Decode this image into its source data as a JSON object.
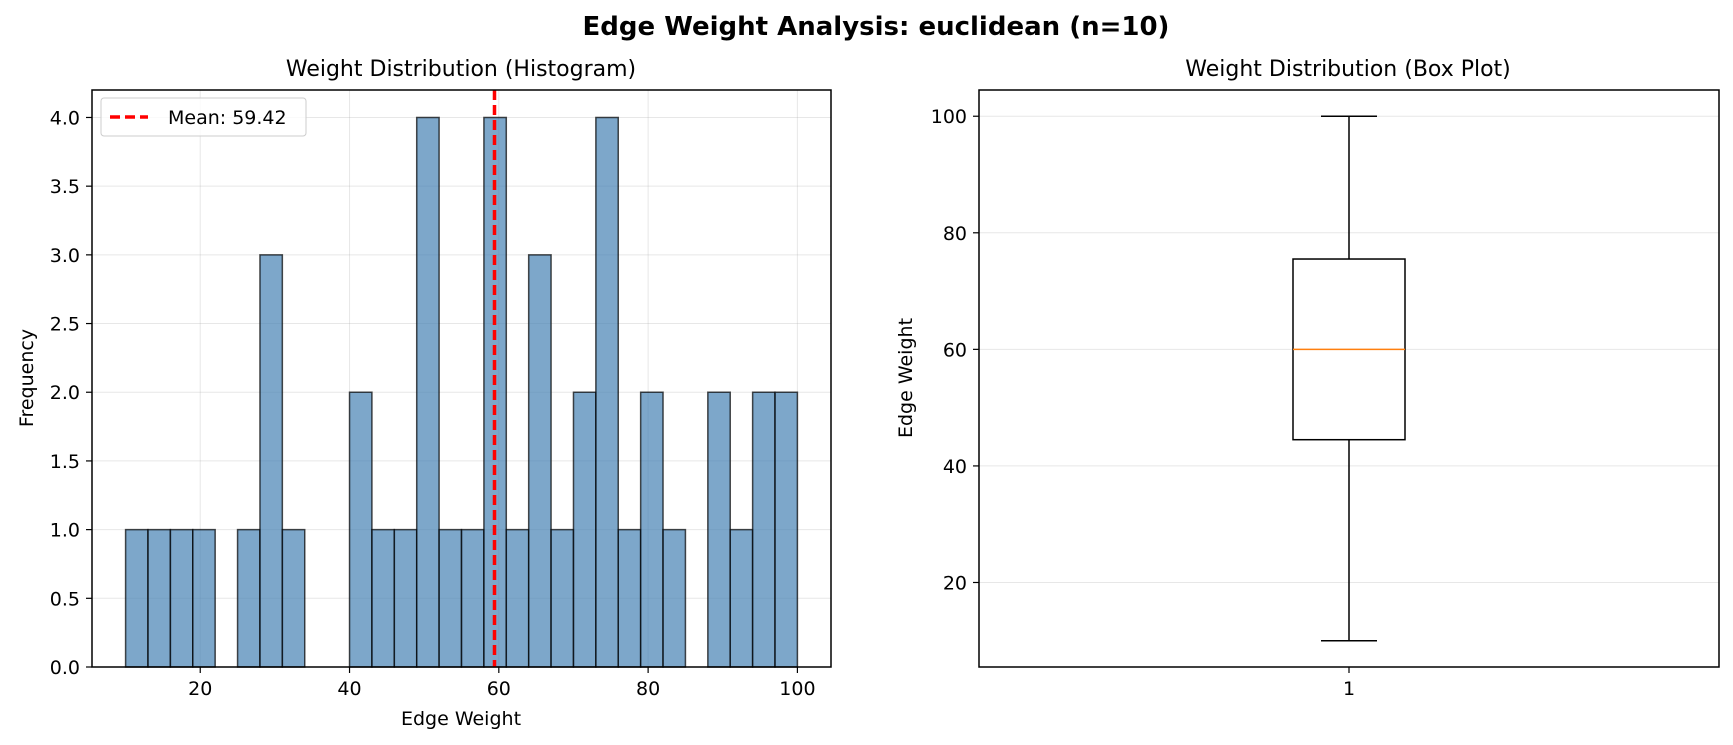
{
  "figure": {
    "suptitle": "Edge Weight Analysis: euclidean (n=10)"
  },
  "colors": {
    "bar_fill": "#4682b4",
    "bar_edge": "#000000",
    "mean_line": "#ff0000",
    "median_line": "#ff7f0e",
    "grid": "#b0b0b0"
  },
  "chart_data": [
    {
      "type": "bar",
      "subtype": "histogram",
      "title": "Weight Distribution (Histogram)",
      "xlabel": "Edge Weight",
      "ylabel": "Frequency",
      "xlim": [
        5.5,
        104.5
      ],
      "ylim": [
        0,
        4.2
      ],
      "x_ticks": [
        20,
        40,
        60,
        80,
        100
      ],
      "y_ticks": [
        0.0,
        0.5,
        1.0,
        1.5,
        2.0,
        2.5,
        3.0,
        3.5,
        4.0
      ],
      "bin_edges": [
        10,
        13,
        16,
        19,
        22,
        25,
        28,
        31,
        34,
        37,
        40,
        43,
        46,
        49,
        52,
        55,
        58,
        61,
        64,
        67,
        70,
        73,
        76,
        79,
        82,
        85,
        88,
        91,
        94,
        97,
        100
      ],
      "values": [
        1,
        1,
        1,
        1,
        0,
        1,
        3,
        1,
        0,
        0,
        2,
        1,
        1,
        4,
        1,
        1,
        4,
        1,
        3,
        1,
        2,
        4,
        1,
        2,
        1,
        0,
        2,
        1,
        2,
        2
      ],
      "mean": 59.42,
      "legend": {
        "label": "Mean: 59.42",
        "position": "upper-left"
      },
      "grid": true
    },
    {
      "type": "box",
      "title": "Weight Distribution (Box Plot)",
      "xlabel": "",
      "ylabel": "Edge Weight",
      "categories": [
        "1"
      ],
      "ylim": [
        5.5,
        104.5
      ],
      "y_ticks": [
        20,
        40,
        60,
        80,
        100
      ],
      "box": {
        "whisker_low": 10,
        "q1": 44.5,
        "median": 60,
        "q3": 75.5,
        "whisker_high": 100
      },
      "grid": true
    }
  ]
}
